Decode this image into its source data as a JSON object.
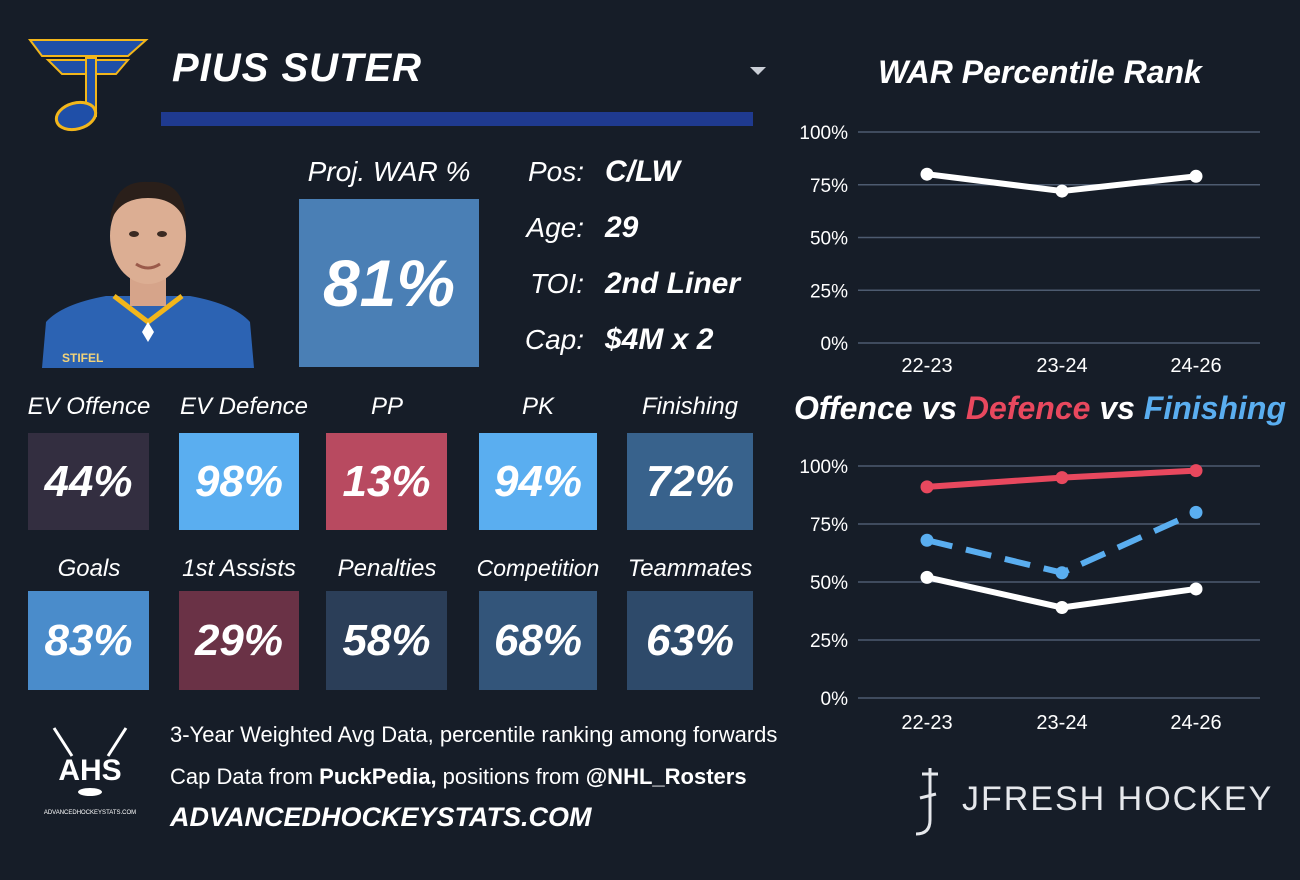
{
  "player": {
    "name": "PIUS SUTER",
    "proj_war_label": "Proj. WAR %",
    "proj_war_value": "81%",
    "jersey_text": "STIFEL",
    "info": [
      {
        "label": "Pos:",
        "value": "C/LW"
      },
      {
        "label": "Age:",
        "value": "29"
      },
      {
        "label": "TOI:",
        "value": "2nd Liner"
      },
      {
        "label": "Cap:",
        "value": "$4M x 2"
      }
    ]
  },
  "stats": [
    {
      "label": "EV Offence",
      "value": "44%",
      "color": "#332e40"
    },
    {
      "label": "EV Defence",
      "value": "98%",
      "color": "#5aaef0"
    },
    {
      "label": "PP",
      "value": "13%",
      "color": "#b84a60"
    },
    {
      "label": "PK",
      "value": "94%",
      "color": "#5aaef0"
    },
    {
      "label": "Finishing",
      "value": "72%",
      "color": "#38628c"
    },
    {
      "label": "Goals",
      "value": "83%",
      "color": "#4a8ccb"
    },
    {
      "label": "1st Assists",
      "value": "29%",
      "color": "#6a3246"
    },
    {
      "label": "Penalties",
      "value": "58%",
      "color": "#2b3e58"
    },
    {
      "label": "Competition",
      "value": "68%",
      "color": "#33557a"
    },
    {
      "label": "Teammates",
      "value": "63%",
      "color": "#2e4a6a"
    }
  ],
  "footer": {
    "line1": "3-Year Weighted Avg Data, percentile ranking among forwards",
    "line2_prefix": "Cap Data from ",
    "line2_bold1": "PuckPedia,",
    "line2_mid": " positions from ",
    "line2_bold2": "@NHL_Rosters",
    "site": "ADVANCEDHOCKEYSTATS.COM",
    "ahs_logo_text": "AHS",
    "ahs_logo_small": "ADVANCEDHOCKEYSTATS.COM",
    "brand": "JFRESH HOCKEY"
  },
  "icons": [
    "blues-note-logo-icon",
    "ahs-logo-icon",
    "jfresh-logo-icon",
    "chevron-down-icon"
  ],
  "chart_data": [
    {
      "type": "line",
      "title": "WAR Percentile Rank",
      "categories": [
        "22-23",
        "23-24",
        "24-26"
      ],
      "series": [
        {
          "values": [
            80,
            72,
            79
          ],
          "color": "#ffffff"
        }
      ],
      "yticks": [
        "100%",
        "75%",
        "50%",
        "25%",
        "0%"
      ],
      "ylim": [
        0,
        100
      ],
      "grid": true
    },
    {
      "type": "line",
      "title_parts": [
        {
          "text": "Offence",
          "color": "#ffffff"
        },
        {
          "text": " vs ",
          "color": "#ffffff"
        },
        {
          "text": "Defence",
          "color": "#e8485e"
        },
        {
          "text": " vs ",
          "color": "#ffffff"
        },
        {
          "text": "Finishing",
          "color": "#5aaef0"
        }
      ],
      "categories": [
        "22-23",
        "23-24",
        "24-26"
      ],
      "series": [
        {
          "name": "Offence",
          "values": [
            52,
            39,
            47
          ],
          "color": "#ffffff",
          "dash": false
        },
        {
          "name": "Defence",
          "values": [
            91,
            95,
            98
          ],
          "color": "#e8485e",
          "dash": false
        },
        {
          "name": "Finishing",
          "values": [
            68,
            54,
            80
          ],
          "color": "#5aaef0",
          "dash": true
        }
      ],
      "yticks": [
        "100%",
        "75%",
        "50%",
        "25%",
        "0%"
      ],
      "ylim": [
        0,
        100
      ],
      "grid": true
    }
  ]
}
